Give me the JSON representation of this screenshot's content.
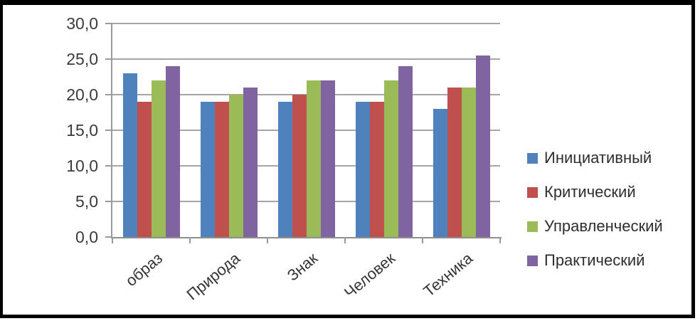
{
  "chart_data": {
    "type": "bar",
    "title": "",
    "xlabel": "",
    "ylabel": "",
    "categories": [
      "образ",
      "Природа",
      "Знак",
      "Человек",
      "Техника"
    ],
    "series": [
      {
        "name": "Инициативный",
        "color": "#4F81BD",
        "values": [
          23,
          19,
          19,
          19,
          18
        ]
      },
      {
        "name": "Критический",
        "color": "#C0504D",
        "values": [
          19,
          19,
          20,
          19,
          21
        ]
      },
      {
        "name": "Управленческий",
        "color": "#9BBB59",
        "values": [
          22,
          20,
          22,
          22,
          21
        ]
      },
      {
        "name": "Практический",
        "color": "#8064A2",
        "values": [
          24,
          21,
          22,
          24,
          25.5
        ]
      }
    ],
    "ylim": [
      0,
      30
    ],
    "y_tick_step": 5,
    "y_tick_labels": [
      "0,0",
      "5,0",
      "10,0",
      "15,0",
      "20,0",
      "25,0",
      "30,0"
    ],
    "grid": "horizontal gridlines on",
    "legend_position": "right"
  },
  "colors": {
    "gridline": "#a6a6a6",
    "axis": "#9a9a9a",
    "tick_text": "#3b3b3b",
    "legend_text": "#2e2e2e",
    "frame_border": "#000000",
    "background": "#ffffff"
  }
}
